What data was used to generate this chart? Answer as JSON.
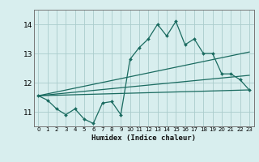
{
  "bg_color": "#d8eeee",
  "grid_color": "#aacccc",
  "line_color": "#1a6b60",
  "xlabel": "Humidex (Indice chaleur)",
  "xlim": [
    -0.5,
    23.5
  ],
  "ylim": [
    10.5,
    14.5
  ],
  "yticks": [
    11,
    12,
    13,
    14
  ],
  "xticks": [
    0,
    1,
    2,
    3,
    4,
    5,
    6,
    7,
    8,
    9,
    10,
    11,
    12,
    13,
    14,
    15,
    16,
    17,
    18,
    19,
    20,
    21,
    22,
    23
  ],
  "series_main": {
    "x": [
      0,
      1,
      2,
      3,
      4,
      5,
      6,
      7,
      8,
      9,
      10,
      11,
      12,
      13,
      14,
      15,
      16,
      17,
      18,
      19,
      20,
      21,
      22,
      23
    ],
    "y": [
      11.55,
      11.4,
      11.1,
      10.9,
      11.1,
      10.75,
      10.6,
      11.3,
      11.35,
      10.9,
      12.8,
      13.2,
      13.5,
      14.0,
      13.6,
      14.1,
      13.3,
      13.5,
      13.0,
      13.0,
      12.3,
      12.3,
      12.1,
      11.75
    ]
  },
  "series_upper": {
    "x": [
      0,
      23
    ],
    "y": [
      11.55,
      13.05
    ]
  },
  "series_lower": {
    "x": [
      0,
      23
    ],
    "y": [
      11.55,
      11.75
    ]
  },
  "series_mid": {
    "x": [
      0,
      23
    ],
    "y": [
      11.55,
      12.25
    ]
  }
}
